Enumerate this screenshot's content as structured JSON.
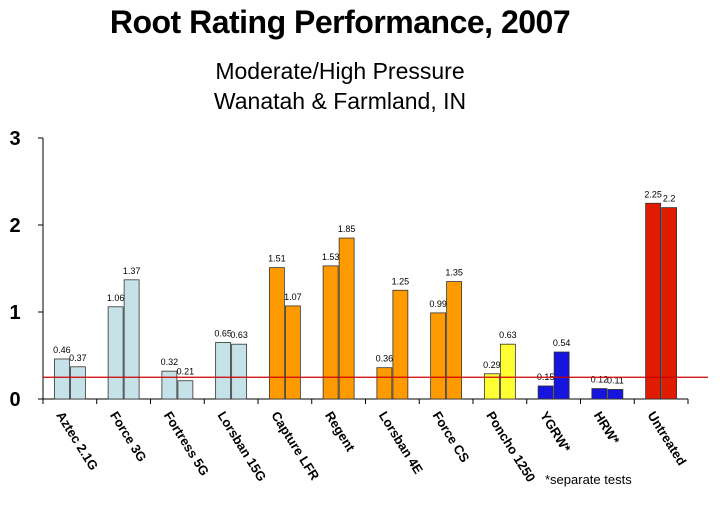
{
  "chart_data": {
    "type": "bar",
    "title": "Root Rating Performance, 2007",
    "subtitle_lines": [
      "Moderate/High Pressure",
      "Wanatah & Farmland, IN"
    ],
    "xlabel": "",
    "ylabel": "",
    "ylim": [
      0,
      3
    ],
    "yticks": [
      "0",
      "1",
      "2",
      "3"
    ],
    "grid": false,
    "reference_line": 0.25,
    "reference_line_color": "#cc0000",
    "footnote": "*separate tests",
    "categories": [
      {
        "name": "Aztec 2.1G",
        "values": [
          0.46,
          0.37
        ],
        "labels": [
          "0.46",
          "0.37"
        ],
        "color": "#c5e2e8"
      },
      {
        "name": "Force 3G",
        "values": [
          1.06,
          1.37
        ],
        "labels": [
          "1.06",
          "1.37"
        ],
        "color": "#c5e2e8"
      },
      {
        "name": "Fortress 5G",
        "values": [
          0.32,
          0.21
        ],
        "labels": [
          "0.32",
          "0.21"
        ],
        "color": "#c5e2e8"
      },
      {
        "name": "Lorsban 15G",
        "values": [
          0.65,
          0.63
        ],
        "labels": [
          "0.65",
          "0.63"
        ],
        "color": "#c5e2e8"
      },
      {
        "name": "Capture LFR",
        "values": [
          1.51,
          1.07
        ],
        "labels": [
          "1.51",
          "1.07"
        ],
        "color": "#ff9a00"
      },
      {
        "name": "Regent",
        "values": [
          1.53,
          1.85
        ],
        "labels": [
          "1.53",
          "1.85"
        ],
        "color": "#ff9a00"
      },
      {
        "name": "Lorsban 4E",
        "values": [
          0.36,
          1.25
        ],
        "labels": [
          "0.36",
          "1.25"
        ],
        "color": "#ff9a00"
      },
      {
        "name": "Force CS",
        "values": [
          0.99,
          1.35
        ],
        "labels": [
          "0.99",
          "1.35"
        ],
        "color": "#ff9a00"
      },
      {
        "name": "Poncho 1250",
        "values": [
          0.29,
          0.63
        ],
        "labels": [
          "0.29",
          "0.63"
        ],
        "color": "#ffff33"
      },
      {
        "name": "YGRW*",
        "values": [
          0.15,
          0.54
        ],
        "labels": [
          "0.15",
          "0.54"
        ],
        "color": "#1515dd"
      },
      {
        "name": "HRW*",
        "values": [
          0.12,
          0.11
        ],
        "labels": [
          "0.12",
          "0.11"
        ],
        "color": "#1515dd"
      },
      {
        "name": "Untreated",
        "values": [
          2.25,
          2.2
        ],
        "labels": [
          "2.25",
          "2.2"
        ],
        "color": "#e01b00"
      }
    ]
  }
}
